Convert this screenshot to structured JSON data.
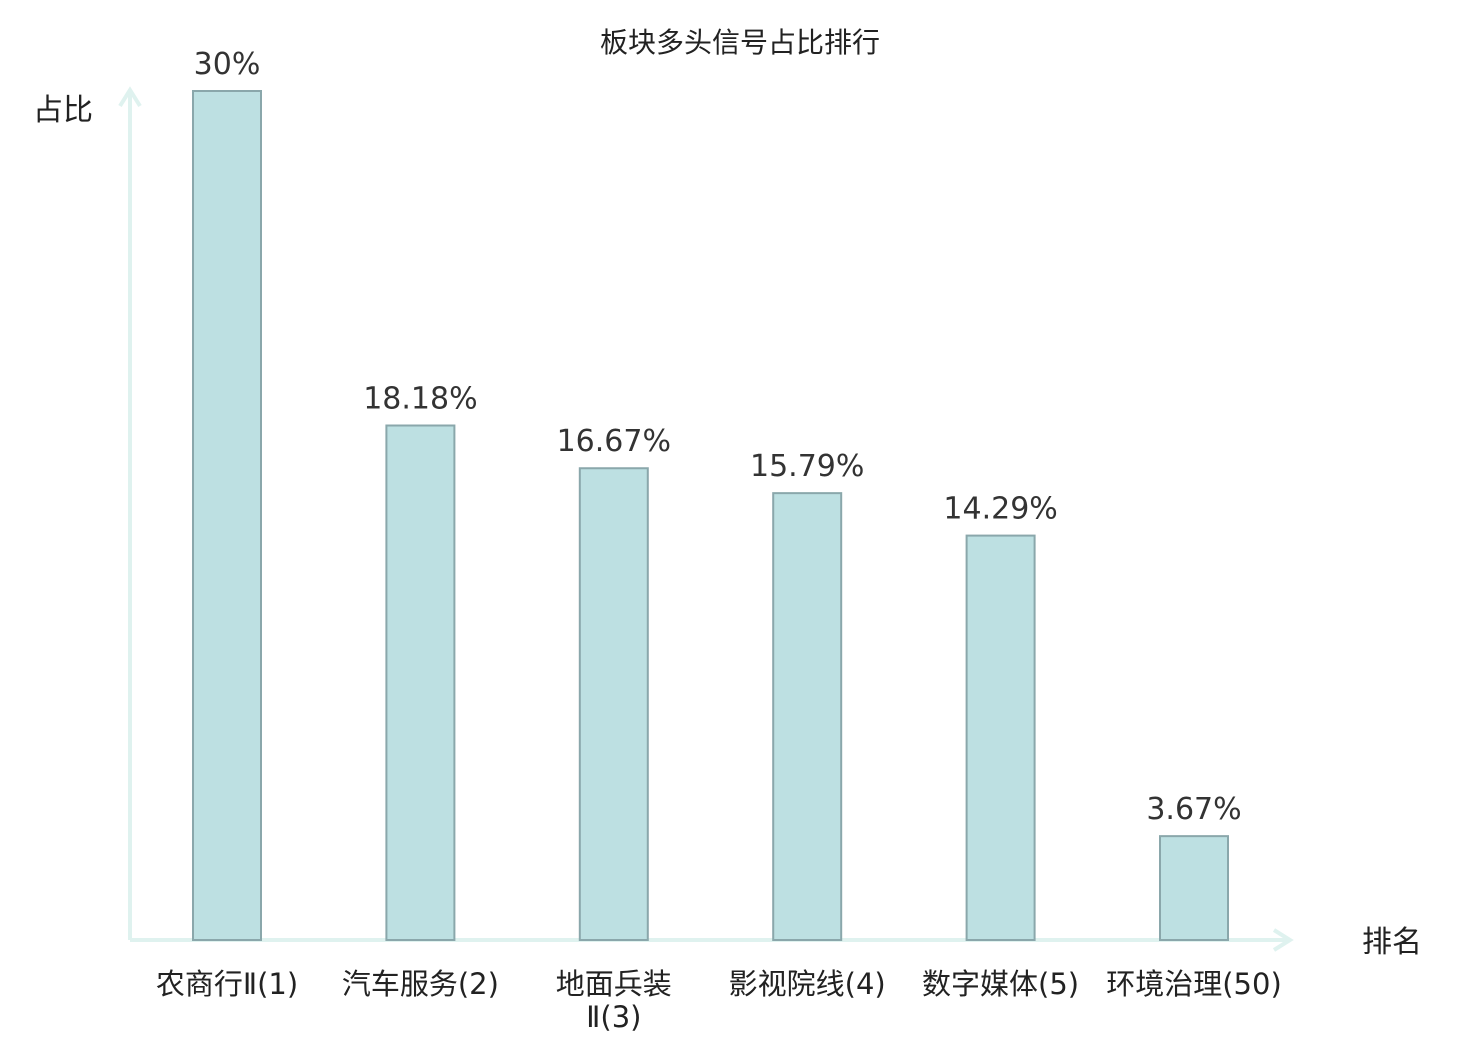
{
  "chart_data": {
    "type": "bar",
    "title": "板块多头信号占比排行",
    "xlabel": "排名",
    "ylabel": "占比",
    "categories": [
      [
        "农商行Ⅱ(1)"
      ],
      [
        "汽车服务(2)"
      ],
      [
        "地面兵装",
        "Ⅱ(3)"
      ],
      [
        "影视院线(4)"
      ],
      [
        "数字媒体(5)"
      ],
      [
        "环境治理(50)"
      ]
    ],
    "values": [
      30,
      18.18,
      16.67,
      15.79,
      14.29,
      3.67
    ],
    "value_labels": [
      "30%",
      "18.18%",
      "16.67%",
      "15.79%",
      "14.29%",
      "3.67%"
    ],
    "highlight_index": 5,
    "ylim": [
      0,
      30
    ],
    "grid": false,
    "legend": "none",
    "colors": {
      "bar_fill": "#bde0e2",
      "bar_stroke": "#8aa7ab",
      "axis": "#dff2ef",
      "highlight_text": "#e0140f",
      "text": "#222222"
    }
  }
}
